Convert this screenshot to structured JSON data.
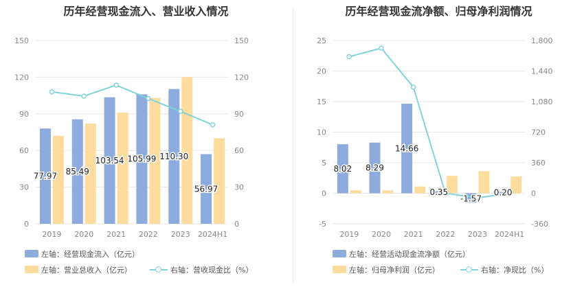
{
  "colors": {
    "bar_primary": "#8dabdc",
    "bar_secondary": "#fedc9e",
    "line": "#7fd3d9",
    "grid": "#e6e6e6",
    "axis_text": "#888888"
  },
  "chart_data": [
    {
      "type": "bar",
      "title": "历年经营现金流入、营业收入情况",
      "categories": [
        "2019",
        "2020",
        "2021",
        "2022",
        "2023",
        "2024H1"
      ],
      "left_axis": {
        "ylim": [
          0,
          150
        ],
        "ticks": [
          0,
          30,
          60,
          90,
          120,
          150
        ]
      },
      "right_axis": {
        "ylim": [
          0,
          150
        ],
        "ticks": [
          0,
          30,
          60,
          90,
          120,
          150
        ]
      },
      "grid": true,
      "legend_position": "bottom",
      "series": [
        {
          "name": "左轴：经营现金流入（亿元）",
          "kind": "bar",
          "axis": "left",
          "values": [
            77.97,
            85.49,
            103.54,
            105.99,
            110.3,
            56.97
          ],
          "labels": [
            "77.97",
            "85.49",
            "103.54",
            "105.99",
            "110.30",
            "56.97"
          ]
        },
        {
          "name": "左轴：营业总收入（亿元）",
          "kind": "bar",
          "axis": "left",
          "values": [
            72,
            82,
            91,
            103,
            120,
            70
          ]
        },
        {
          "name": "右轴：营收现金比（%）",
          "kind": "line",
          "axis": "right",
          "values": [
            108,
            104.5,
            113.5,
            102.5,
            92,
            81
          ]
        }
      ]
    },
    {
      "type": "bar",
      "title": "历年经营现金流净额、归母净利润情况",
      "categories": [
        "2019",
        "2020",
        "2021",
        "2022",
        "2023",
        "2024H1"
      ],
      "left_axis": {
        "ylim": [
          -5,
          25
        ],
        "ticks": [
          -5,
          0,
          5,
          10,
          15,
          20,
          25
        ]
      },
      "right_axis": {
        "ylim": [
          -360,
          1800
        ],
        "ticks": [
          "-360",
          "0",
          "360",
          "720",
          "1,080",
          "1,440",
          "1,800"
        ]
      },
      "grid": true,
      "legend_position": "bottom",
      "series": [
        {
          "name": "左轴：经营活动现金流净额（亿元）",
          "kind": "bar",
          "axis": "left",
          "values": [
            8.02,
            8.29,
            14.66,
            0.35,
            -1.57,
            0.2
          ],
          "labels": [
            "8.02",
            "8.29",
            "14.66",
            "0.35",
            "-1.57",
            "0.20"
          ]
        },
        {
          "name": "左轴：归母净利润（亿元）",
          "kind": "bar",
          "axis": "left",
          "values": [
            0.5,
            0.45,
            1.1,
            2.85,
            3.6,
            2.75
          ]
        },
        {
          "name": "右轴：净现比（%）",
          "kind": "line",
          "axis": "right",
          "values": [
            1610,
            1710,
            1250,
            0,
            -55,
            0
          ]
        }
      ]
    }
  ]
}
